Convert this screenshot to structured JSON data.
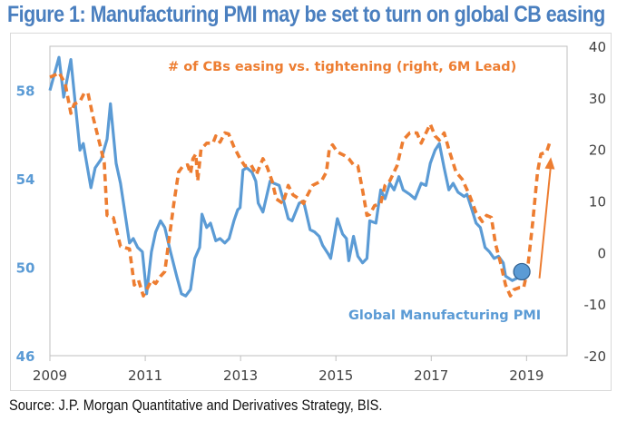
{
  "title": "Figure 1: Manufacturing PMI may be set to turn on global CB easing",
  "source": "Source: J.P. Morgan Quantitative and Derivatives Strategy, BIS.",
  "colors": {
    "pmi": "#5b9bd5",
    "cb": "#ed7d31",
    "title": "#4a7fbf"
  },
  "chart_data": {
    "type": "line",
    "title": "Figure 1: Manufacturing PMI may be set to turn on global CB easing",
    "xlabel": "",
    "ylabel": "",
    "xlim": [
      2009,
      2019.85
    ],
    "x_ticks": [
      "2009",
      "2011",
      "2013",
      "2015",
      "2017",
      "2019"
    ],
    "x_tick_values": [
      2009,
      2011,
      2013,
      2015,
      2017,
      2019
    ],
    "y_left": {
      "lim": [
        46,
        60
      ],
      "ticks": [
        "46",
        "50",
        "54",
        "58"
      ],
      "tick_values": [
        46,
        50,
        54,
        58
      ]
    },
    "y_right": {
      "lim": [
        -20,
        40
      ],
      "ticks": [
        "-20",
        "-10",
        "0",
        "10",
        "20",
        "30",
        "40"
      ],
      "tick_values": [
        -20,
        -10,
        0,
        10,
        20,
        30,
        40
      ]
    },
    "grid": false,
    "legend": "none (inline annotations)",
    "annotations": [
      {
        "text": "# of CBs easing vs. tightening (right, 6M Lead)",
        "series": "cb",
        "position": "top-center"
      },
      {
        "text": "Global Manufacturing PMI",
        "series": "pmi",
        "position": "bottom-right"
      }
    ],
    "series": [
      {
        "name": "Global Manufacturing PMI",
        "axis": "left",
        "style": "solid",
        "points": [
          [
            2009.0,
            58.0
          ],
          [
            2009.19,
            59.5
          ],
          [
            2009.29,
            57.7
          ],
          [
            2009.44,
            59.4
          ],
          [
            2009.63,
            55.3
          ],
          [
            2009.7,
            55.6
          ],
          [
            2009.86,
            53.6
          ],
          [
            2009.95,
            54.5
          ],
          [
            2010.08,
            54.9
          ],
          [
            2010.2,
            55.8
          ],
          [
            2010.27,
            57.4
          ],
          [
            2010.39,
            54.7
          ],
          [
            2010.48,
            53.8
          ],
          [
            2010.67,
            51.1
          ],
          [
            2010.75,
            51.3
          ],
          [
            2010.84,
            50.9
          ],
          [
            2010.94,
            50.7
          ],
          [
            2011.03,
            48.8
          ],
          [
            2011.13,
            50.7
          ],
          [
            2011.22,
            51.6
          ],
          [
            2011.32,
            52.1
          ],
          [
            2011.41,
            51.8
          ],
          [
            2011.53,
            50.7
          ],
          [
            2011.66,
            49.6
          ],
          [
            2011.76,
            48.8
          ],
          [
            2011.85,
            48.7
          ],
          [
            2011.95,
            49.0
          ],
          [
            2012.04,
            50.4
          ],
          [
            2012.14,
            50.9
          ],
          [
            2012.19,
            52.4
          ],
          [
            2012.29,
            51.8
          ],
          [
            2012.37,
            52.0
          ],
          [
            2012.48,
            51.2
          ],
          [
            2012.57,
            51.3
          ],
          [
            2012.67,
            51.1
          ],
          [
            2012.76,
            51.3
          ],
          [
            2012.86,
            52.1
          ],
          [
            2012.94,
            52.6
          ],
          [
            2012.99,
            52.7
          ],
          [
            2013.05,
            54.4
          ],
          [
            2013.13,
            54.5
          ],
          [
            2013.24,
            54.3
          ],
          [
            2013.32,
            53.9
          ],
          [
            2013.37,
            52.9
          ],
          [
            2013.47,
            52.5
          ],
          [
            2013.62,
            53.9
          ],
          [
            2013.7,
            53.8
          ],
          [
            2013.81,
            53.7
          ],
          [
            2013.89,
            53.1
          ],
          [
            2014.0,
            52.2
          ],
          [
            2014.08,
            52.1
          ],
          [
            2014.23,
            52.9
          ],
          [
            2014.32,
            53.0
          ],
          [
            2014.46,
            51.7
          ],
          [
            2014.55,
            51.6
          ],
          [
            2014.65,
            51.4
          ],
          [
            2014.72,
            51.0
          ],
          [
            2014.84,
            50.6
          ],
          [
            2014.89,
            50.4
          ],
          [
            2015.03,
            52.2
          ],
          [
            2015.14,
            51.5
          ],
          [
            2015.22,
            51.3
          ],
          [
            2015.27,
            50.3
          ],
          [
            2015.37,
            51.4
          ],
          [
            2015.46,
            50.5
          ],
          [
            2015.56,
            50.2
          ],
          [
            2015.65,
            50.4
          ],
          [
            2015.71,
            52.1
          ],
          [
            2015.84,
            52.0
          ],
          [
            2015.94,
            53.5
          ],
          [
            2016.03,
            53.1
          ],
          [
            2016.13,
            53.8
          ],
          [
            2016.22,
            53.5
          ],
          [
            2016.32,
            54.1
          ],
          [
            2016.41,
            53.5
          ],
          [
            2016.55,
            53.3
          ],
          [
            2016.66,
            53.1
          ],
          [
            2016.79,
            53.8
          ],
          [
            2016.89,
            53.7
          ],
          [
            2016.98,
            54.7
          ],
          [
            2017.08,
            55.3
          ],
          [
            2017.17,
            55.6
          ],
          [
            2017.27,
            54.5
          ],
          [
            2017.37,
            53.5
          ],
          [
            2017.46,
            53.8
          ],
          [
            2017.56,
            53.4
          ],
          [
            2017.69,
            53.2
          ],
          [
            2017.75,
            53.3
          ],
          [
            2017.84,
            52.7
          ],
          [
            2017.94,
            52.0
          ],
          [
            2018.03,
            51.8
          ],
          [
            2018.13,
            50.9
          ],
          [
            2018.22,
            50.7
          ],
          [
            2018.32,
            50.4
          ],
          [
            2018.41,
            50.5
          ],
          [
            2018.51,
            50.2
          ],
          [
            2018.56,
            49.6
          ],
          [
            2018.7,
            49.4
          ],
          [
            2018.79,
            49.5
          ],
          [
            2018.9,
            49.8
          ]
        ],
        "marker_last": {
          "x": 2018.9,
          "y": 49.8,
          "shape": "circle"
        }
      },
      {
        "name": "# of CBs easing vs. tightening (right, 6M Lead)",
        "axis": "right",
        "style": "dashed",
        "points": [
          [
            2009.0,
            34.0
          ],
          [
            2009.1,
            34.4
          ],
          [
            2009.19,
            34.9
          ],
          [
            2009.32,
            32.8
          ],
          [
            2009.44,
            27.0
          ],
          [
            2009.51,
            28.8
          ],
          [
            2009.63,
            29.3
          ],
          [
            2009.72,
            30.9
          ],
          [
            2009.8,
            30.9
          ],
          [
            2009.91,
            26.1
          ],
          [
            2010.05,
            20.9
          ],
          [
            2010.14,
            17.4
          ],
          [
            2010.2,
            7.2
          ],
          [
            2010.33,
            6.8
          ],
          [
            2010.48,
            1.2
          ],
          [
            2010.67,
            0.7
          ],
          [
            2010.77,
            -6.3
          ],
          [
            2010.86,
            -5.4
          ],
          [
            2010.96,
            -8.4
          ],
          [
            2011.03,
            -7.2
          ],
          [
            2011.13,
            -5.4
          ],
          [
            2011.22,
            -6.0
          ],
          [
            2011.32,
            -4.6
          ],
          [
            2011.41,
            -3.7
          ],
          [
            2011.51,
            3.3
          ],
          [
            2011.6,
            9.5
          ],
          [
            2011.7,
            15.6
          ],
          [
            2011.79,
            16.8
          ],
          [
            2011.89,
            17.0
          ],
          [
            2011.95,
            15.3
          ],
          [
            2012.0,
            18.2
          ],
          [
            2012.06,
            19.1
          ],
          [
            2012.1,
            13.9
          ],
          [
            2012.17,
            20.0
          ],
          [
            2012.29,
            21.2
          ],
          [
            2012.42,
            21.2
          ],
          [
            2012.48,
            22.6
          ],
          [
            2012.57,
            21.4
          ],
          [
            2012.67,
            23.2
          ],
          [
            2012.75,
            23.0
          ],
          [
            2012.86,
            20.5
          ],
          [
            2012.99,
            18.2
          ],
          [
            2013.09,
            16.8
          ],
          [
            2013.22,
            17.0
          ],
          [
            2013.33,
            15.1
          ],
          [
            2013.47,
            18.2
          ],
          [
            2013.56,
            16.5
          ],
          [
            2013.66,
            13.9
          ],
          [
            2013.75,
            10.4
          ],
          [
            2013.89,
            9.5
          ],
          [
            2014.0,
            13.0
          ],
          [
            2014.1,
            11.2
          ],
          [
            2014.23,
            10.4
          ],
          [
            2014.32,
            9.5
          ],
          [
            2014.38,
            10.7
          ],
          [
            2014.51,
            13.0
          ],
          [
            2014.7,
            13.9
          ],
          [
            2014.8,
            15.6
          ],
          [
            2014.86,
            20.0
          ],
          [
            2014.93,
            20.9
          ],
          [
            2015.03,
            19.5
          ],
          [
            2015.18,
            18.8
          ],
          [
            2015.27,
            18.2
          ],
          [
            2015.37,
            17.0
          ],
          [
            2015.46,
            16.8
          ],
          [
            2015.56,
            12.1
          ],
          [
            2015.65,
            7.2
          ],
          [
            2015.71,
            7.4
          ],
          [
            2015.81,
            9.1
          ],
          [
            2015.94,
            9.5
          ],
          [
            2016.03,
            13.0
          ],
          [
            2016.13,
            13.9
          ],
          [
            2016.28,
            16.8
          ],
          [
            2016.41,
            21.8
          ],
          [
            2016.55,
            23.2
          ],
          [
            2016.7,
            23.2
          ],
          [
            2016.79,
            21.2
          ],
          [
            2016.89,
            23.2
          ],
          [
            2016.98,
            24.9
          ],
          [
            2017.08,
            22.6
          ],
          [
            2017.17,
            21.8
          ],
          [
            2017.27,
            23.2
          ],
          [
            2017.37,
            20.0
          ],
          [
            2017.52,
            15.6
          ],
          [
            2017.65,
            14.2
          ],
          [
            2017.8,
            11.2
          ],
          [
            2017.94,
            7.7
          ],
          [
            2018.07,
            6.0
          ],
          [
            2018.16,
            7.2
          ],
          [
            2018.26,
            6.8
          ],
          [
            2018.35,
            1.6
          ],
          [
            2018.45,
            -1.9
          ],
          [
            2018.56,
            -6.3
          ],
          [
            2018.66,
            -8.4
          ],
          [
            2018.73,
            -7.2
          ],
          [
            2018.85,
            -6.8
          ],
          [
            2018.94,
            -6.8
          ],
          [
            2019.02,
            -3.3
          ],
          [
            2019.13,
            6.0
          ],
          [
            2019.23,
            15.6
          ],
          [
            2019.3,
            19.1
          ],
          [
            2019.42,
            19.5
          ],
          [
            2019.48,
            21.2
          ]
        ]
      }
    ],
    "arrow": {
      "axis": "right",
      "from": [
        2019.27,
        -5.0
      ],
      "to": [
        2019.51,
        18.5
      ],
      "meaning": "projected upturn"
    }
  }
}
